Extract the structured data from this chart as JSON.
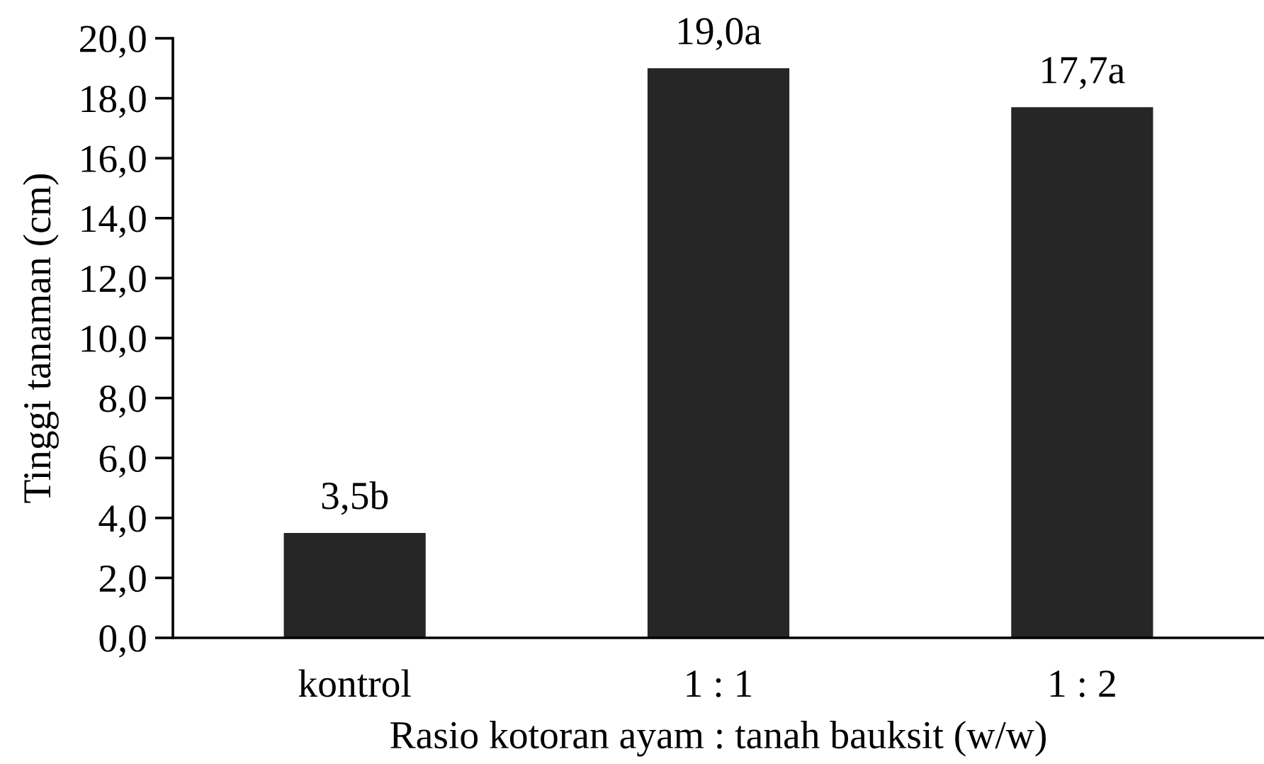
{
  "chart_data": {
    "type": "bar",
    "xlabel": "Rasio kotoran ayam : tanah bauksit (w/w)",
    "ylabel": "Tinggi tanaman (cm)",
    "categories": [
      "kontrol",
      "1 : 1",
      "1 : 2"
    ],
    "values": [
      3.5,
      19.0,
      17.7
    ],
    "value_labels": [
      "3,5b",
      "19,0a",
      "17,7a"
    ],
    "color": "#262626",
    "ylim": [
      0,
      20
    ],
    "yticks": [
      {
        "value": 0,
        "label": "0,0"
      },
      {
        "value": 2,
        "label": "2,0"
      },
      {
        "value": 4,
        "label": "4,0"
      },
      {
        "value": 6,
        "label": "6,0"
      },
      {
        "value": 8,
        "label": "8,0"
      },
      {
        "value": 10,
        "label": "10,0"
      },
      {
        "value": 12,
        "label": "12,0"
      },
      {
        "value": 14,
        "label": "14,0"
      },
      {
        "value": 16,
        "label": "16,0"
      },
      {
        "value": 18,
        "label": "18,0"
      },
      {
        "value": 20,
        "label": "20,0"
      }
    ]
  }
}
